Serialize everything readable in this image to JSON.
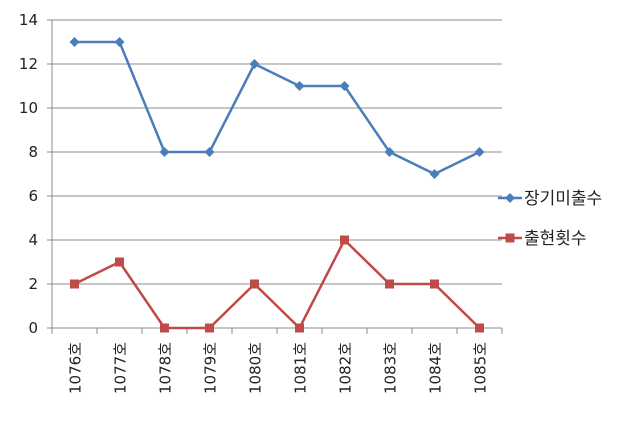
{
  "chart_data": {
    "type": "line",
    "categories": [
      "1076호",
      "1077호",
      "1078호",
      "1079호",
      "1080호",
      "1081호",
      "1082호",
      "1083호",
      "1084호",
      "1085호"
    ],
    "series": [
      {
        "name": "장기미출수",
        "values": [
          13,
          13,
          8,
          8,
          12,
          11,
          11,
          8,
          7,
          8
        ],
        "color": "#4A7EBB",
        "marker": "diamond"
      },
      {
        "name": "출현횟수",
        "values": [
          2,
          3,
          0,
          0,
          2,
          0,
          4,
          2,
          2,
          0
        ],
        "color": "#BE4B48",
        "marker": "square"
      }
    ],
    "ylim": [
      0,
      14
    ],
    "yticks": [
      0,
      2,
      4,
      6,
      8,
      10,
      12,
      14
    ],
    "grid": true,
    "legend": "right"
  }
}
